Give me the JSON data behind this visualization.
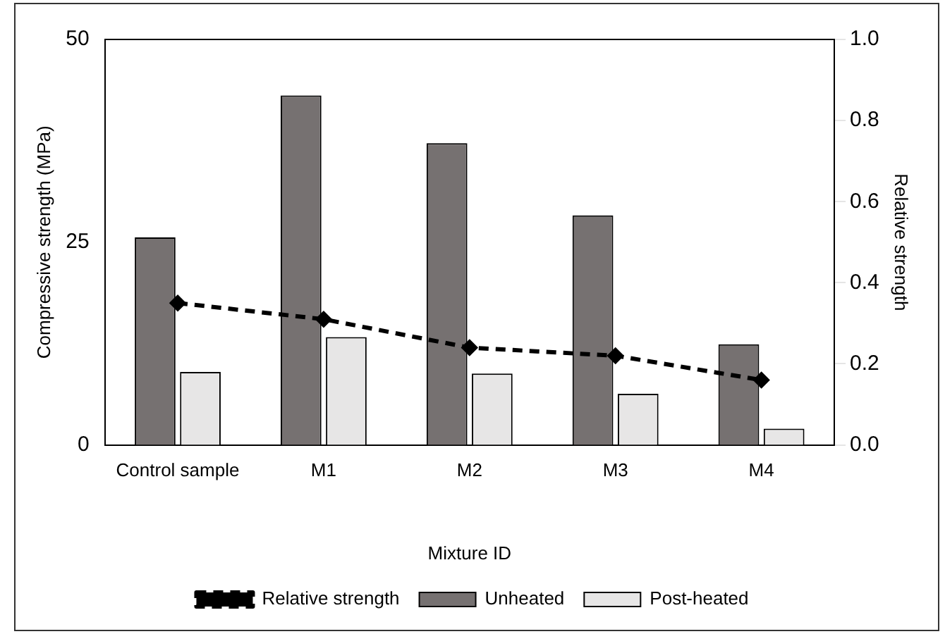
{
  "chart_data": {
    "type": "bar",
    "xlabel": "Mixture ID",
    "ylabel": "Compressive strength (MPa)",
    "y2label": "Relative strength",
    "categories": [
      "Control sample",
      "M1",
      "M2",
      "M3",
      "M4"
    ],
    "series": [
      {
        "name": "Unheated",
        "color": "#767171",
        "values": [
          25.6,
          43.1,
          37.2,
          28.3,
          12.4
        ]
      },
      {
        "name": "Post-heated",
        "color": "#e7e6e6",
        "values": [
          9.0,
          13.3,
          8.8,
          6.3,
          2.0
        ]
      },
      {
        "name": "Relative strength",
        "type": "line",
        "axis": "y2",
        "color": "#000000",
        "marker": "diamond",
        "line_style": "dashed",
        "values": [
          0.35,
          0.31,
          0.24,
          0.22,
          0.16
        ]
      }
    ],
    "ylim": [
      0,
      50
    ],
    "yticks": [
      0,
      25,
      50
    ],
    "y2lim": [
      0,
      1
    ],
    "y2ticks": [
      {
        "value": 0,
        "label": "0.0"
      },
      {
        "value": 0.2,
        "label": "0.2"
      },
      {
        "value": 0.4,
        "label": "0.4"
      },
      {
        "value": 0.6,
        "label": "0.6"
      },
      {
        "value": 0.8,
        "label": "0.8"
      },
      {
        "value": 1,
        "label": "1.0"
      }
    ],
    "grid": false,
    "legend": "bottom"
  }
}
